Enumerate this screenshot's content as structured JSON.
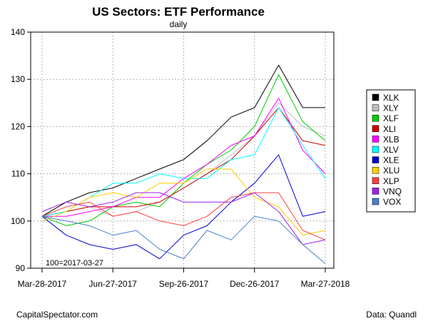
{
  "chart_data": {
    "type": "line",
    "title": "US Sectors: ETF Performance",
    "subtitle": "daily",
    "xlabel": "",
    "ylabel": "",
    "ylim": [
      90,
      140
    ],
    "yticks": [
      90,
      100,
      110,
      120,
      130,
      140
    ],
    "x_dates": [
      "2017-03-28",
      "2017-04-28",
      "2017-05-28",
      "2017-06-27",
      "2017-07-27",
      "2017-08-26",
      "2017-09-26",
      "2017-10-26",
      "2017-11-26",
      "2017-12-26",
      "2018-01-26",
      "2018-02-26",
      "2018-03-27"
    ],
    "xlim": [
      "2017-03-28",
      "2018-03-27"
    ],
    "xticks": [
      {
        "date": "2017-03-28",
        "label": "Mar-28-2017"
      },
      {
        "date": "2017-06-27",
        "label": "Jun-27-2017"
      },
      {
        "date": "2017-09-26",
        "label": "Sep-26-2017"
      },
      {
        "date": "2017-12-26",
        "label": "Dec-26-2017"
      },
      {
        "date": "2018-03-27",
        "label": "Mar-27-2018"
      }
    ],
    "grid": true,
    "legend_position": "right",
    "baseline_note": "100=2017-03-27",
    "series": [
      {
        "name": "XLK",
        "color": "#000000",
        "values": [
          101,
          104,
          106,
          107,
          109,
          111,
          113,
          117,
          122,
          124,
          133,
          124,
          124
        ]
      },
      {
        "name": "XLY",
        "color": "#bebebe",
        "values": [
          101,
          102,
          103,
          101,
          102,
          104,
          107,
          110,
          114,
          118,
          125,
          120,
          118
        ]
      },
      {
        "name": "XLF",
        "color": "#00cd00",
        "values": [
          101,
          99,
          100,
          103,
          104,
          103,
          108,
          112,
          115,
          120,
          131,
          121,
          117
        ]
      },
      {
        "name": "XLI",
        "color": "#cd0000",
        "values": [
          101,
          102,
          103,
          103,
          103,
          104,
          107,
          110,
          113,
          118,
          124,
          117,
          116
        ]
      },
      {
        "name": "XLB",
        "color": "#ff00ff",
        "values": [
          101,
          101,
          102,
          103,
          105,
          105,
          109,
          112,
          116,
          118,
          126,
          115,
          110
        ]
      },
      {
        "name": "XLV",
        "color": "#00ffff",
        "values": [
          101,
          102,
          105,
          108,
          108,
          110,
          109,
          109,
          113,
          114,
          124,
          116,
          109
        ]
      },
      {
        "name": "XLE",
        "color": "#0000cd",
        "values": [
          101,
          97,
          95,
          94,
          95,
          92,
          97,
          99,
          104,
          108,
          114,
          101,
          102
        ]
      },
      {
        "name": "XLU",
        "color": "#ffcd00",
        "values": [
          100,
          102,
          105,
          106,
          105,
          108,
          108,
          111,
          111,
          105,
          103,
          97,
          98
        ]
      },
      {
        "name": "XLP",
        "color": "#ff4040",
        "values": [
          101,
          103,
          104,
          101,
          102,
          100,
          99,
          101,
          105,
          106,
          106,
          98,
          96
        ]
      },
      {
        "name": "VNQ",
        "color": "#a020f0",
        "values": [
          102,
          104,
          103,
          104,
          106,
          106,
          104,
          104,
          104,
          106,
          102,
          95,
          96
        ]
      },
      {
        "name": "VOX",
        "color": "#4a80cd",
        "values": [
          101,
          100,
          99,
          97,
          98,
          94,
          92,
          98,
          96,
          101,
          100,
          95,
          91
        ]
      }
    ]
  },
  "footer": {
    "left": "CapitalSpectator.com",
    "right": "Data: Quandl"
  }
}
